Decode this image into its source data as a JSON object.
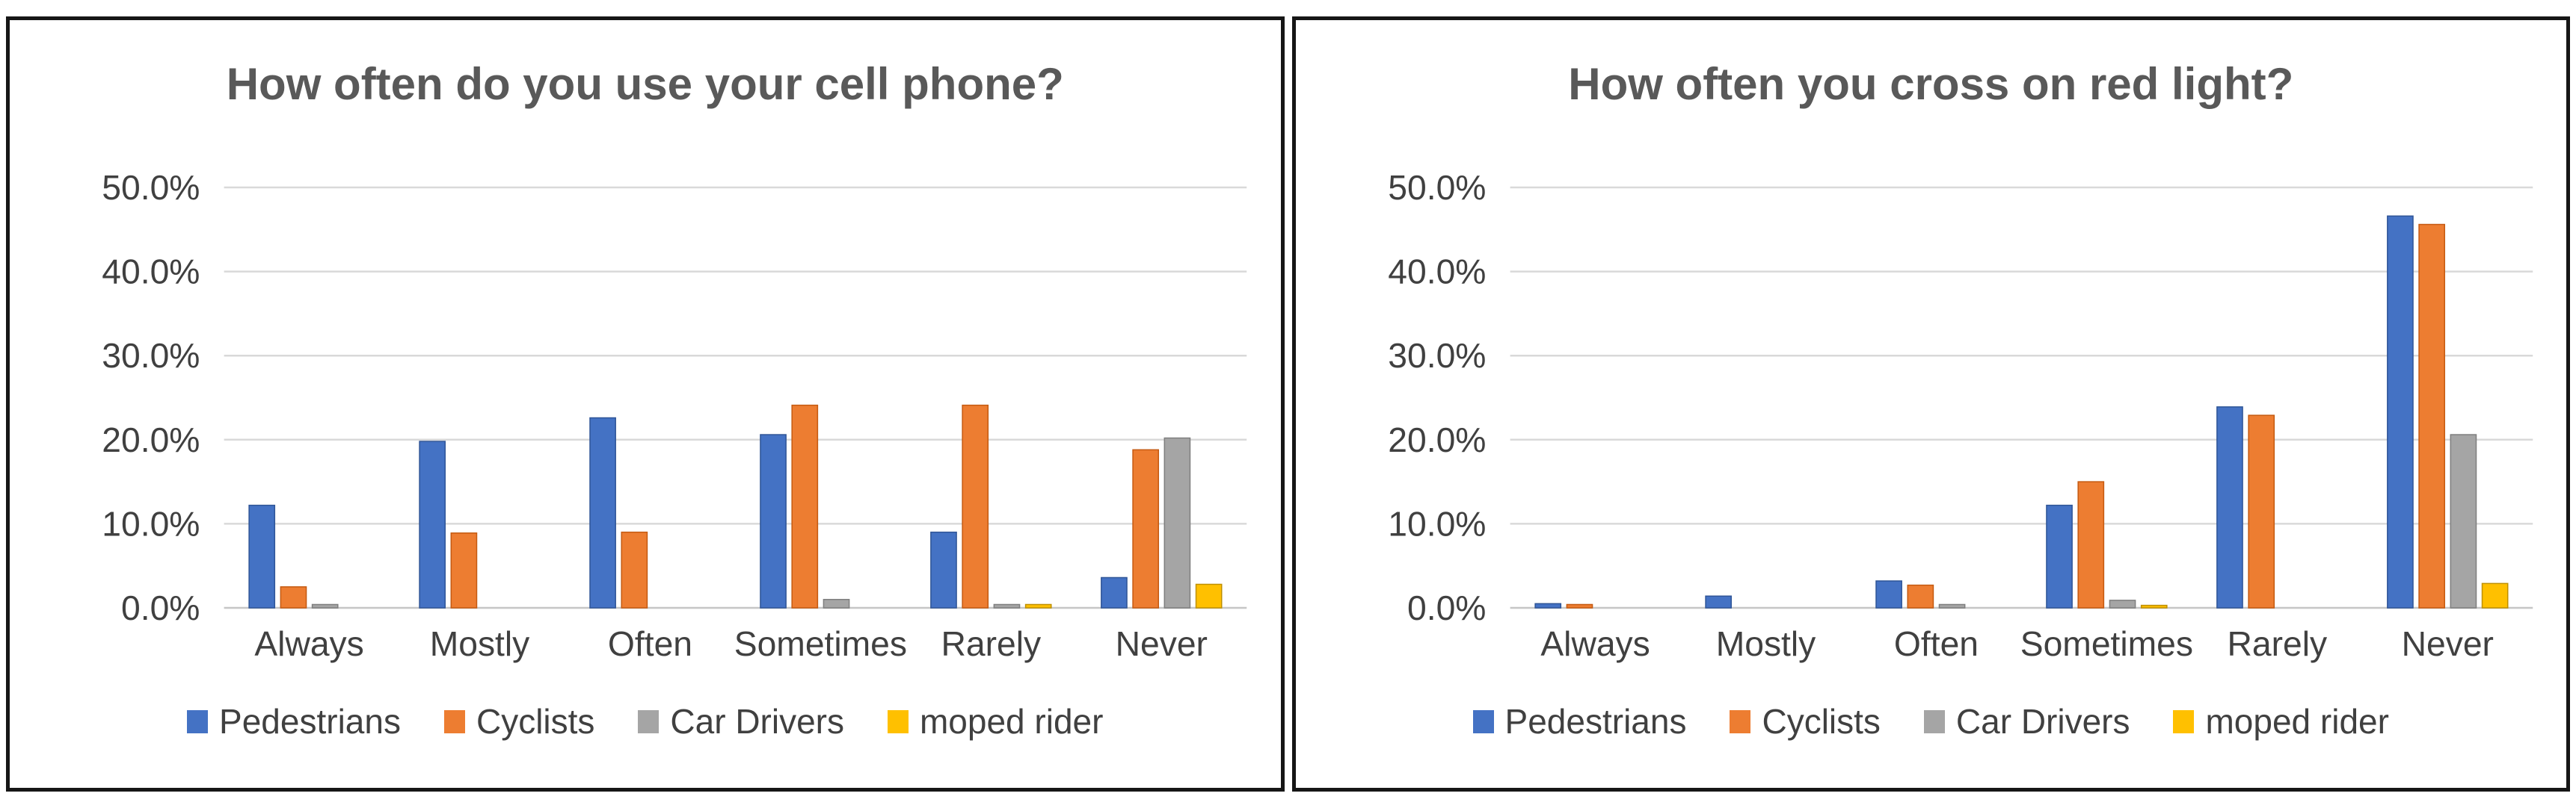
{
  "page": {
    "background": "#ffffff",
    "frame_color": "#161616",
    "gridline_color": "#d9d9d9",
    "axis_line_color": "#c6c6c6",
    "text_color": "#404040",
    "title_color": "#595959"
  },
  "chart_data": [
    {
      "type": "bar",
      "title": "How often do you use your cell phone?",
      "categories": [
        "Always",
        "Mostly",
        "Often",
        "Sometimes",
        "Rarely",
        "Never"
      ],
      "series": [
        {
          "name": "Pedestrians",
          "color": "#4472C4",
          "edge": "#2F5597",
          "values": [
            12.2,
            19.8,
            22.6,
            20.6,
            9.0,
            3.6
          ]
        },
        {
          "name": "Cyclists",
          "color": "#ED7D31",
          "edge": "#C55A11",
          "values": [
            2.5,
            8.9,
            9.0,
            24.1,
            24.1,
            18.8
          ]
        },
        {
          "name": "Car Drivers",
          "color": "#A5A5A5",
          "edge": "#7F7F7F",
          "values": [
            0.4,
            0.0,
            0.0,
            1.0,
            0.4,
            20.2
          ]
        },
        {
          "name": "moped rider",
          "color": "#FFC000",
          "edge": "#BF9000",
          "values": [
            0.0,
            0.0,
            0.0,
            0.0,
            0.4,
            2.8
          ]
        }
      ],
      "xlabel": "",
      "ylabel": "",
      "ylim": [
        0,
        50
      ],
      "yticks": [
        0,
        10,
        20,
        30,
        40,
        50
      ],
      "ytick_labels": [
        "0.0%",
        "10.0%",
        "20.0%",
        "30.0%",
        "40.0%",
        "50.0%"
      ],
      "grid": true,
      "legend_position": "bottom"
    },
    {
      "type": "bar",
      "title": "How often you cross on red light?",
      "categories": [
        "Always",
        "Mostly",
        "Often",
        "Sometimes",
        "Rarely",
        "Never"
      ],
      "series": [
        {
          "name": "Pedestrians",
          "color": "#4472C4",
          "edge": "#2F5597",
          "values": [
            0.5,
            1.4,
            3.2,
            12.2,
            23.9,
            46.6
          ]
        },
        {
          "name": "Cyclists",
          "color": "#ED7D31",
          "edge": "#C55A11",
          "values": [
            0.4,
            0.0,
            2.7,
            15.0,
            22.9,
            45.6
          ]
        },
        {
          "name": "Car Drivers",
          "color": "#A5A5A5",
          "edge": "#7F7F7F",
          "values": [
            0.0,
            0.0,
            0.4,
            0.9,
            0.0,
            20.6
          ]
        },
        {
          "name": "moped rider",
          "color": "#FFC000",
          "edge": "#BF9000",
          "values": [
            0.0,
            0.0,
            0.0,
            0.3,
            0.0,
            2.9
          ]
        }
      ],
      "xlabel": "",
      "ylabel": "",
      "ylim": [
        0,
        50
      ],
      "yticks": [
        0,
        10,
        20,
        30,
        40,
        50
      ],
      "ytick_labels": [
        "0.0%",
        "10.0%",
        "20.0%",
        "30.0%",
        "40.0%",
        "50.0%"
      ],
      "grid": true,
      "legend_position": "bottom"
    }
  ]
}
